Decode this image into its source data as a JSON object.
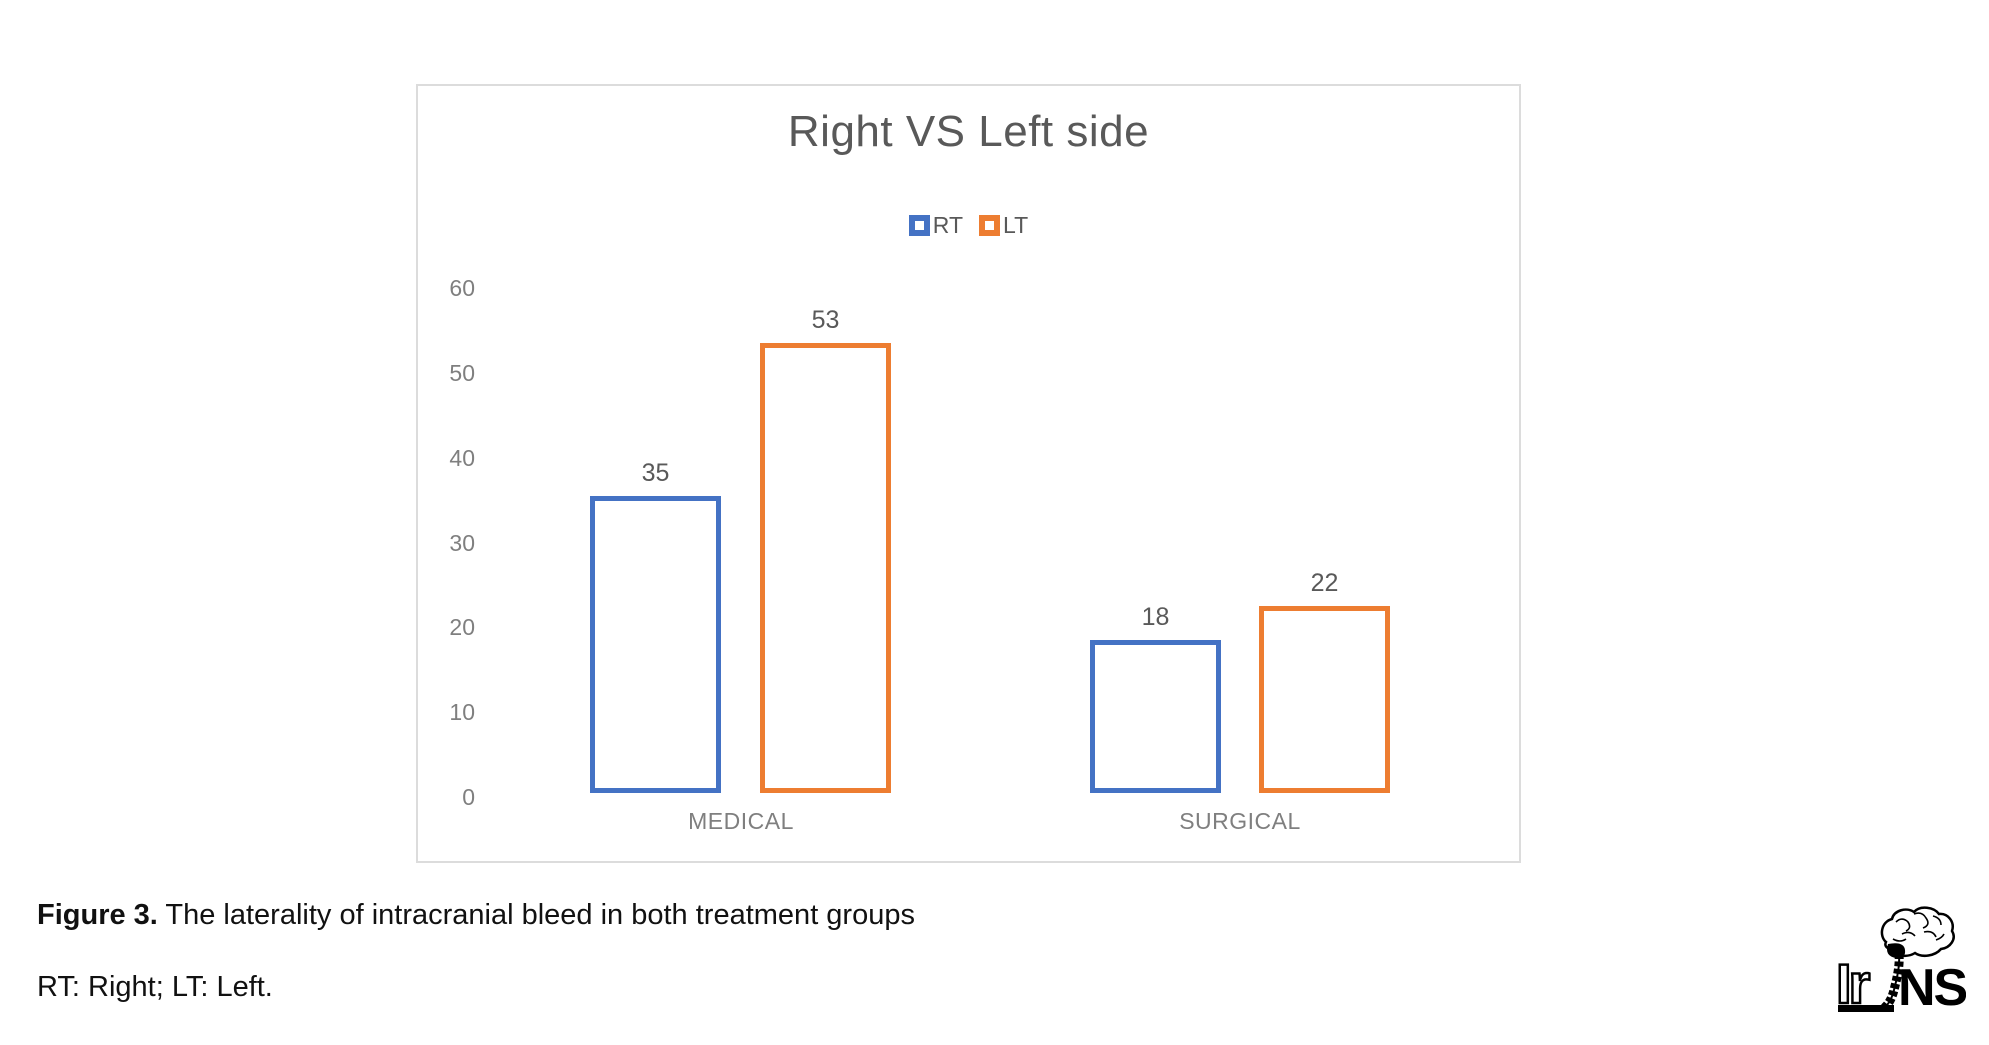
{
  "chart_data": {
    "type": "bar",
    "title": "Right VS Left side",
    "categories": [
      "MEDICAL",
      "SURGICAL"
    ],
    "series": [
      {
        "name": "RT",
        "color": "#4472C4",
        "values": [
          35,
          18
        ]
      },
      {
        "name": "LT",
        "color": "#ED7D31",
        "values": [
          53,
          22
        ]
      }
    ],
    "ylim": [
      0,
      60
    ],
    "yticks": [
      0,
      10,
      20,
      30,
      40,
      50,
      60
    ],
    "xlabel": "",
    "ylabel": "",
    "grid": false,
    "legend_position": "top",
    "bar_style": "hollow-outlined",
    "data_labels_shown": true
  },
  "colors": {
    "rt_blue": "#4472C4",
    "lt_orange": "#ED7D31",
    "title_gray": "#595959",
    "axis_gray": "#7f7f7f",
    "chart_border": "#dcdcdc"
  },
  "caption": {
    "label": "Figure 3.",
    "text": " The laterality of intracranial bleed in both treatment groups"
  },
  "footnote": "RT: Right; LT: Left.",
  "logo": {
    "left_text": "Ir",
    "right_text": "NS"
  }
}
